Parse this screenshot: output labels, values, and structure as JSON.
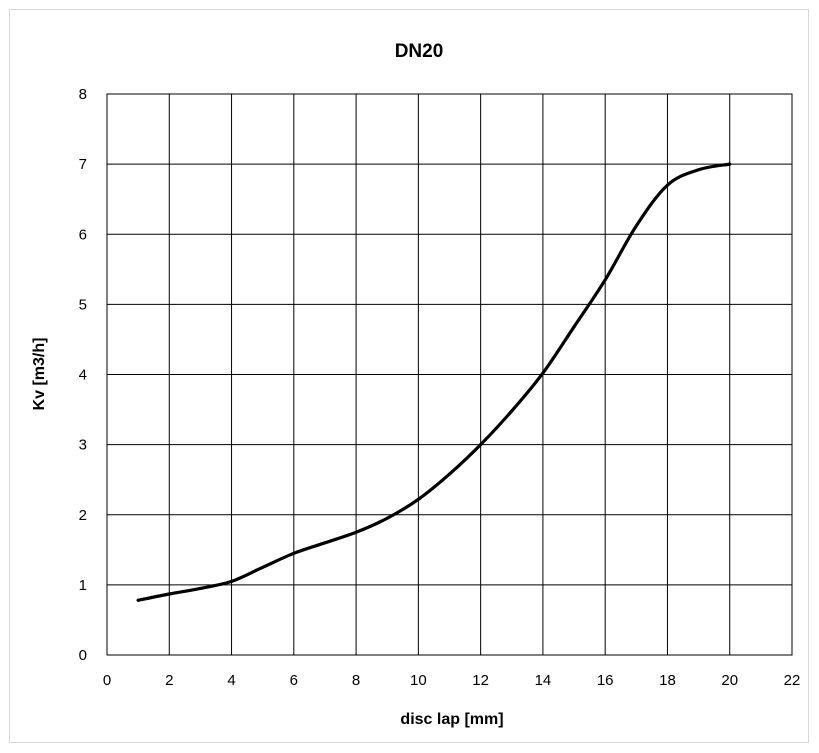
{
  "chart_data": {
    "type": "line",
    "title": "DN20",
    "xlabel": "disc lap [mm]",
    "ylabel": "Kv [m3/h]",
    "xlim": [
      0,
      22
    ],
    "ylim": [
      0,
      8
    ],
    "x_ticks": [
      0,
      2,
      4,
      6,
      8,
      10,
      12,
      14,
      16,
      18,
      20,
      22
    ],
    "y_ticks": [
      0,
      1,
      2,
      3,
      4,
      5,
      6,
      7,
      8
    ],
    "grid": true,
    "legend": "none",
    "line_color": "#000000",
    "series": [
      {
        "x": [
          1,
          2,
          3,
          4,
          5,
          6,
          7,
          8,
          9,
          10,
          11,
          12,
          13,
          14,
          15,
          16,
          17,
          18,
          19,
          20
        ],
        "y": [
          0.78,
          0.87,
          0.95,
          1.05,
          1.25,
          1.45,
          1.6,
          1.75,
          1.95,
          2.22,
          2.58,
          3.0,
          3.48,
          4.02,
          4.68,
          5.35,
          6.12,
          6.7,
          6.92,
          7.0
        ]
      }
    ]
  }
}
